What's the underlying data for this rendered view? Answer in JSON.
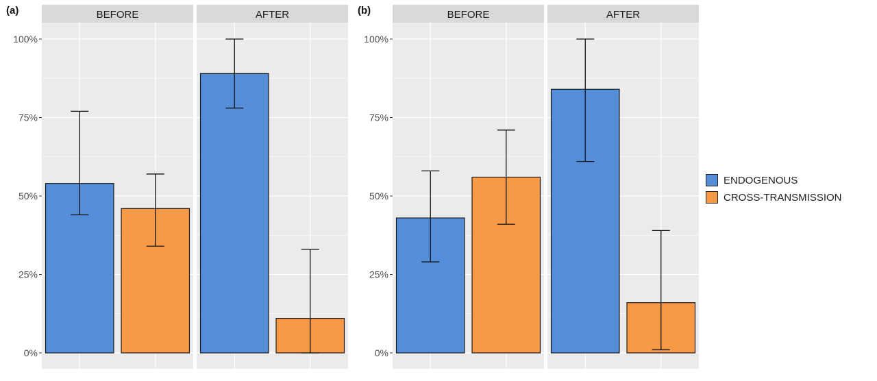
{
  "chart_data": [
    {
      "type": "bar",
      "label": "(a)",
      "facets": [
        {
          "name": "BEFORE",
          "series": [
            {
              "name": "ENDOGENOUS",
              "value": 54,
              "error_low": 44,
              "error_high": 77
            },
            {
              "name": "CROSS-TRANSMISSION",
              "value": 46,
              "error_low": 34,
              "error_high": 57
            }
          ]
        },
        {
          "name": "AFTER",
          "series": [
            {
              "name": "ENDOGENOUS",
              "value": 89,
              "error_low": 78,
              "error_high": 100
            },
            {
              "name": "CROSS-TRANSMISSION",
              "value": 11,
              "error_low": 0,
              "error_high": 33
            }
          ]
        }
      ],
      "yticks": [
        "0%",
        "25%",
        "50%",
        "75%",
        "100%"
      ],
      "ylim": [
        0,
        100
      ],
      "grid": true
    },
    {
      "type": "bar",
      "label": "(b)",
      "facets": [
        {
          "name": "BEFORE",
          "series": [
            {
              "name": "ENDOGENOUS",
              "value": 43,
              "error_low": 29,
              "error_high": 58
            },
            {
              "name": "CROSS-TRANSMISSION",
              "value": 56,
              "error_low": 41,
              "error_high": 71
            }
          ]
        },
        {
          "name": "AFTER",
          "series": [
            {
              "name": "ENDOGENOUS",
              "value": 84,
              "error_low": 61,
              "error_high": 100
            },
            {
              "name": "CROSS-TRANSMISSION",
              "value": 16,
              "error_low": 1,
              "error_high": 39
            }
          ]
        }
      ],
      "yticks": [
        "0%",
        "25%",
        "50%",
        "75%",
        "100%"
      ],
      "ylim": [
        0,
        100
      ],
      "grid": true
    }
  ],
  "legend": {
    "position": "right",
    "items": [
      {
        "label": "ENDOGENOUS",
        "color": "#548DD8"
      },
      {
        "label": "CROSS-TRANSMISSION",
        "color": "#F89A45"
      }
    ]
  },
  "colors": {
    "panel_background": "#EBEBEB",
    "strip_background": "#D9D9D9",
    "grid_line": "#FFFFFF",
    "bar_outline": "#1A1A1A"
  }
}
